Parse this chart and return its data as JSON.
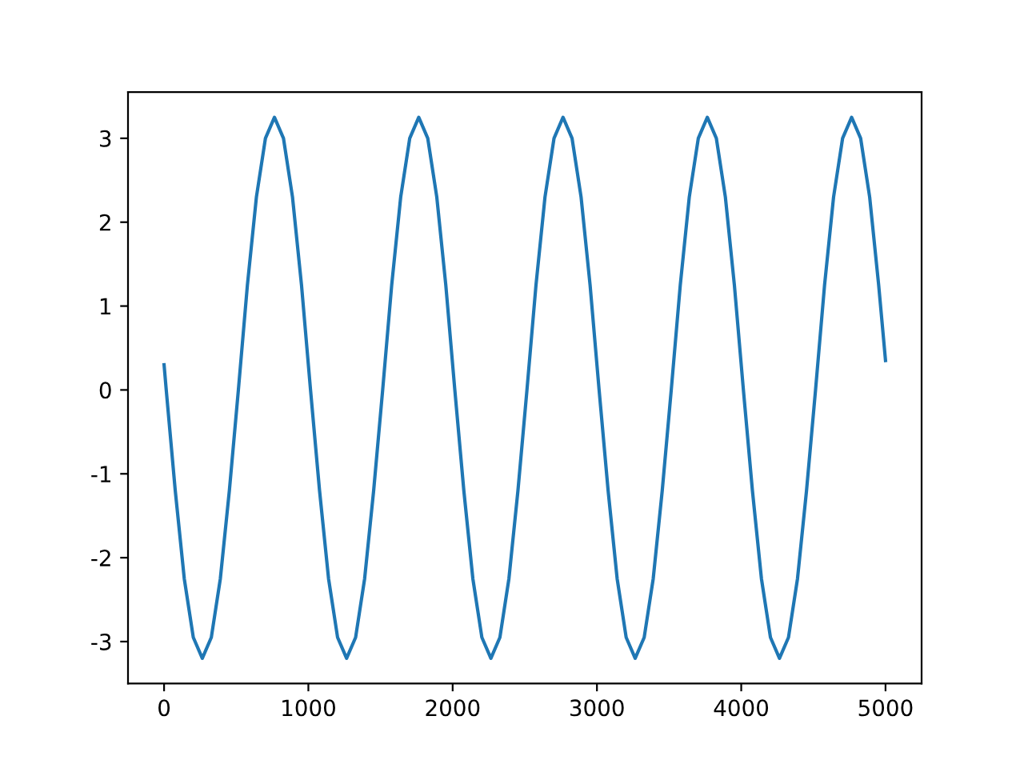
{
  "chart_data": {
    "type": "line",
    "series": [
      {
        "color": "#1f77b4",
        "x": [
          0,
          15,
          77.5,
          140,
          202.5,
          265,
          327.5,
          390,
          452.5,
          515,
          577.5,
          640,
          702.5,
          765,
          827.5,
          890,
          952.5,
          1015,
          1077.5,
          1140,
          1202.5,
          1265,
          1327.5,
          1390,
          1452.5,
          1515,
          1577.5,
          1640,
          1702.5,
          1765,
          1827.5,
          1890,
          1952.5,
          2015,
          2077.5,
          2140,
          2202.5,
          2265,
          2327.5,
          2390,
          2452.5,
          2515,
          2577.5,
          2640,
          2702.5,
          2765,
          2827.5,
          2890,
          2952.5,
          3015,
          3077.5,
          3140,
          3202.5,
          3265,
          3327.5,
          3390,
          3452.5,
          3515,
          3577.5,
          3640,
          3702.5,
          3765,
          3827.5,
          3890,
          3952.5,
          4015,
          4077.5,
          4140,
          4202.5,
          4265,
          4327.5,
          4390,
          4452.5,
          4515,
          4577.5,
          4640,
          4702.5,
          4765,
          4827.5,
          4890,
          4952.5,
          5000
        ],
        "values": [
          0.3,
          0.0,
          -1.2,
          -2.25,
          -2.95,
          -3.2,
          -2.95,
          -2.25,
          -1.2,
          0.0,
          1.25,
          2.3,
          3.0,
          3.25,
          3.0,
          2.3,
          1.25,
          0.0,
          -1.2,
          -2.25,
          -2.95,
          -3.2,
          -2.95,
          -2.25,
          -1.2,
          0.0,
          1.25,
          2.3,
          3.0,
          3.25,
          3.0,
          2.3,
          1.25,
          0.0,
          -1.2,
          -2.25,
          -2.95,
          -3.2,
          -2.95,
          -2.25,
          -1.2,
          0.0,
          1.25,
          2.3,
          3.0,
          3.25,
          3.0,
          2.3,
          1.25,
          0.0,
          -1.2,
          -2.25,
          -2.95,
          -3.2,
          -2.95,
          -2.25,
          -1.2,
          0.0,
          1.25,
          2.3,
          3.0,
          3.25,
          3.0,
          2.3,
          1.25,
          0.0,
          -1.2,
          -2.25,
          -2.95,
          -3.2,
          -2.95,
          -2.25,
          -1.2,
          0.0,
          1.25,
          2.3,
          3.0,
          3.25,
          3.0,
          2.3,
          1.25,
          0.35
        ]
      }
    ],
    "xlim": [
      -250,
      5250
    ],
    "xticks": [
      0,
      1000,
      2000,
      3000,
      4000,
      5000
    ],
    "ylim": [
      -3.5,
      3.55
    ],
    "yticks": [
      -3,
      -2,
      -1,
      0,
      1,
      2,
      3
    ],
    "grid": false
  }
}
